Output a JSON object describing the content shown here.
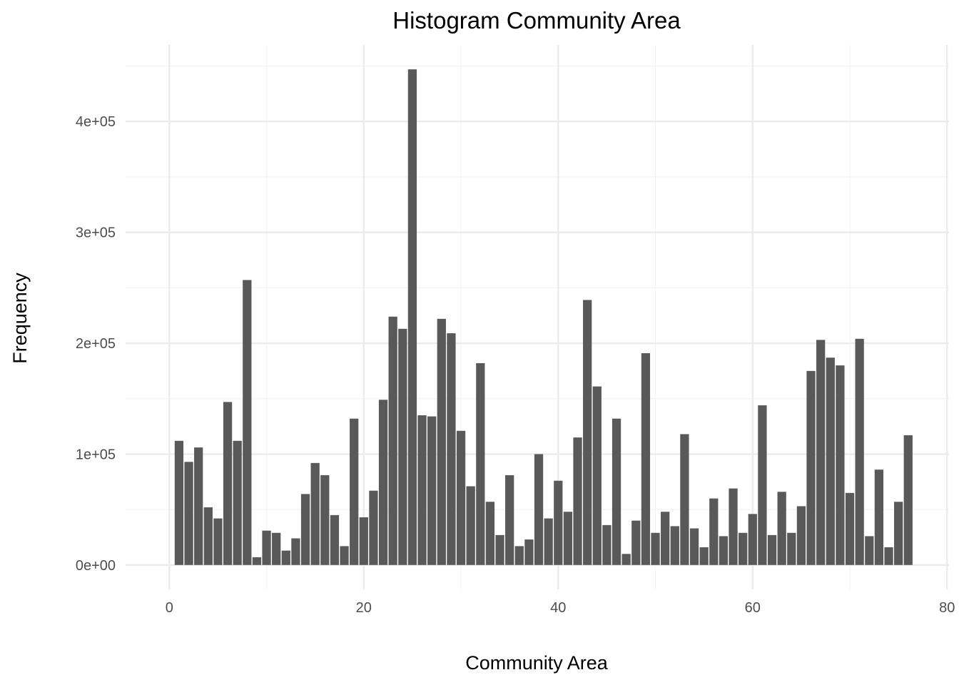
{
  "chart_data": {
    "type": "bar",
    "title": "Histogram Community Area",
    "xlabel": "Community Area",
    "ylabel": "Frequency",
    "xlim": [
      -4.5,
      80.2
    ],
    "ylim": [
      -22000,
      469000
    ],
    "x_ticks": [
      0,
      20,
      40,
      60,
      80
    ],
    "x_tick_labels": [
      "0",
      "20",
      "40",
      "60",
      "80"
    ],
    "y_ticks": [
      0,
      100000,
      200000,
      300000,
      400000
    ],
    "y_tick_labels": [
      "0e+00",
      "1e+05",
      "2e+05",
      "3e+05",
      "4e+05"
    ],
    "grid": true,
    "bar_color": "#595959",
    "bar_width": 0.9,
    "x": [
      1,
      2,
      3,
      4,
      5,
      6,
      7,
      8,
      9,
      10,
      11,
      12,
      13,
      14,
      15,
      16,
      17,
      18,
      19,
      20,
      21,
      22,
      23,
      24,
      25,
      26,
      27,
      28,
      29,
      30,
      31,
      32,
      33,
      34,
      35,
      36,
      37,
      38,
      39,
      40,
      41,
      42,
      43,
      44,
      45,
      46,
      47,
      48,
      49,
      50,
      51,
      52,
      53,
      54,
      55,
      56,
      57,
      58,
      59,
      60,
      61,
      62,
      63,
      64,
      65,
      66,
      67,
      68,
      69,
      70,
      71,
      72,
      73,
      74,
      75,
      76
    ],
    "values": [
      112000,
      93000,
      106000,
      52000,
      42000,
      147000,
      112000,
      257000,
      7000,
      31000,
      29000,
      13000,
      24000,
      64000,
      92000,
      81000,
      45000,
      17000,
      132000,
      43000,
      67000,
      149000,
      224000,
      213000,
      447000,
      135000,
      134000,
      222000,
      209000,
      121000,
      71000,
      182000,
      57000,
      27000,
      81000,
      17000,
      23000,
      100000,
      42000,
      76000,
      48000,
      115000,
      239000,
      161000,
      36000,
      132000,
      10000,
      40000,
      191000,
      29000,
      48000,
      35000,
      118000,
      33000,
      16000,
      60000,
      26000,
      69000,
      29000,
      46000,
      144000,
      27000,
      66000,
      29000,
      53000,
      175000,
      203000,
      187000,
      180000,
      65000,
      204000,
      26000,
      86000,
      16000,
      57000,
      117000
    ]
  }
}
